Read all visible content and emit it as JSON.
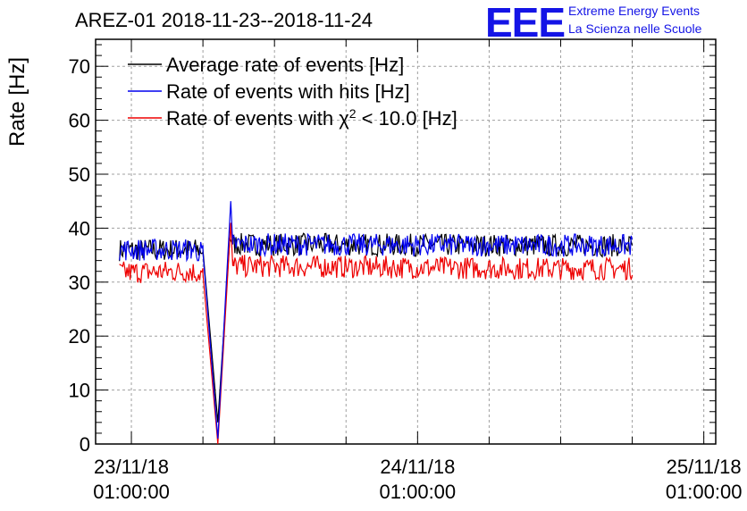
{
  "title": "AREZ-01 2018-11-23--2018-11-24",
  "logo": {
    "text": "EEE",
    "line1": "Extreme Energy Events",
    "line2": "La Scienza nelle Scuole",
    "color": "#1414e6"
  },
  "chart_data": {
    "type": "line",
    "title": "AREZ-01 2018-11-23--2018-11-24",
    "xlabel": "",
    "ylabel": "Rate [Hz]",
    "ylim": [
      0,
      75
    ],
    "xlim": [
      "2018-11-22 22:00",
      "2018-11-25 02:00"
    ],
    "grid": true,
    "legend_position": "top-left",
    "y_ticks": [
      0,
      10,
      20,
      30,
      40,
      50,
      60,
      70
    ],
    "x_ticks": [
      {
        "x": "2018-11-23 01:00",
        "line1": "23/11/18",
        "line2": "01:00:00"
      },
      {
        "x": "2018-11-24 01:00",
        "line1": "24/11/18",
        "line2": "01:00:00"
      },
      {
        "x": "2018-11-25 01:00",
        "line1": "25/11/18",
        "line2": "01:00:00"
      }
    ],
    "series": [
      {
        "name": "Average rate of events [Hz]",
        "color": "#000000",
        "points": [
          [
            "2018-11-23 00:00",
            36.0
          ],
          [
            "2018-11-23 06:00",
            36.0
          ],
          [
            "2018-11-23 07:00",
            36.0
          ],
          [
            "2018-11-23 08:15",
            4
          ],
          [
            "2018-11-23 09:15",
            38
          ],
          [
            "2018-11-23 09:30",
            37.0
          ],
          [
            "2018-11-24 12:00",
            36.8
          ],
          [
            "2018-11-24 19:00",
            36.8
          ]
        ]
      },
      {
        "name": "Rate of events with hits [Hz]",
        "color": "#0000ee",
        "points": [
          [
            "2018-11-23 00:00",
            36.0
          ],
          [
            "2018-11-23 06:00",
            36.0
          ],
          [
            "2018-11-23 07:00",
            35.5
          ],
          [
            "2018-11-23 08:15",
            1
          ],
          [
            "2018-11-23 09:20",
            45
          ],
          [
            "2018-11-23 09:30",
            37.0
          ],
          [
            "2018-11-24 12:00",
            36.8
          ],
          [
            "2018-11-24 19:00",
            36.8
          ]
        ]
      },
      {
        "name": "Rate of events with χ² < 10.0 [Hz]",
        "color": "#ee0000",
        "points": [
          [
            "2018-11-23 00:00",
            31.8
          ],
          [
            "2018-11-23 06:00",
            32.0
          ],
          [
            "2018-11-23 07:00",
            31.5
          ],
          [
            "2018-11-23 08:15",
            0
          ],
          [
            "2018-11-23 09:20",
            41
          ],
          [
            "2018-11-23 09:30",
            33.0
          ],
          [
            "2018-11-24 12:00",
            32.5
          ],
          [
            "2018-11-24 19:00",
            32.5
          ]
        ]
      }
    ]
  }
}
